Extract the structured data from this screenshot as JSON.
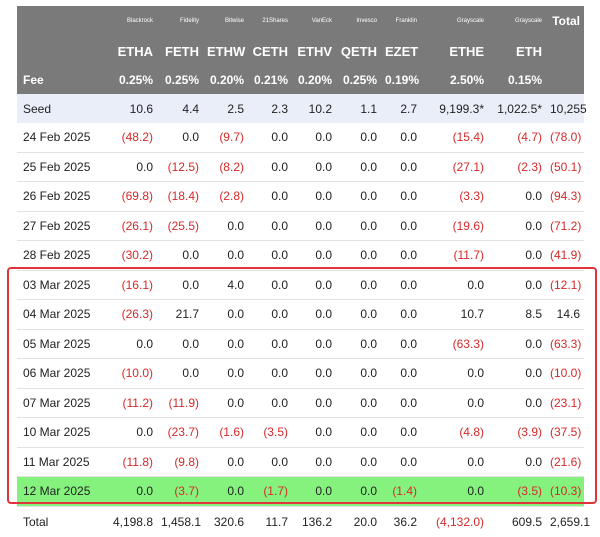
{
  "table": {
    "issuers": [
      "",
      "Blackrock",
      "Fidelity",
      "Bitwise",
      "21Shares",
      "VanEck",
      "Invesco",
      "Franklin",
      "Grayscale",
      "Grayscale",
      "Total"
    ],
    "tickers": [
      "",
      "ETHA",
      "FETH",
      "ETHW",
      "CETH",
      "ETHV",
      "QETH",
      "EZET",
      "ETHE",
      "ETH",
      ""
    ],
    "fees": [
      "Fee",
      "0.25%",
      "0.25%",
      "0.20%",
      "0.21%",
      "0.20%",
      "0.25%",
      "0.19%",
      "2.50%",
      "0.15%",
      ""
    ],
    "rows": [
      {
        "cells": [
          "Seed",
          "10.6",
          "4.4",
          "2.5",
          "2.3",
          "10.2",
          "1.1",
          "2.7",
          "9,199.3*",
          "1,022.5*",
          "10,255"
        ],
        "style": "seed"
      },
      {
        "cells": [
          "24 Feb 2025",
          "(48.2)",
          "0.0",
          "(9.7)",
          "0.0",
          "0.0",
          "0.0",
          "0.0",
          "(15.4)",
          "(4.7)",
          "(78.0)"
        ],
        "style": "data"
      },
      {
        "cells": [
          "25 Feb 2025",
          "0.0",
          "(12.5)",
          "(8.2)",
          "0.0",
          "0.0",
          "0.0",
          "0.0",
          "(27.1)",
          "(2.3)",
          "(50.1)"
        ],
        "style": "data"
      },
      {
        "cells": [
          "26 Feb 2025",
          "(69.8)",
          "(18.4)",
          "(2.8)",
          "0.0",
          "0.0",
          "0.0",
          "0.0",
          "(3.3)",
          "0.0",
          "(94.3)"
        ],
        "style": "data"
      },
      {
        "cells": [
          "27 Feb 2025",
          "(26.1)",
          "(25.5)",
          "0.0",
          "0.0",
          "0.0",
          "0.0",
          "0.0",
          "(19.6)",
          "0.0",
          "(71.2)"
        ],
        "style": "data"
      },
      {
        "cells": [
          "28 Feb 2025",
          "(30.2)",
          "0.0",
          "0.0",
          "0.0",
          "0.0",
          "0.0",
          "0.0",
          "(11.7)",
          "0.0",
          "(41.9)"
        ],
        "style": "data"
      },
      {
        "cells": [
          "03 Mar 2025",
          "(16.1)",
          "0.0",
          "4.0",
          "0.0",
          "0.0",
          "0.0",
          "0.0",
          "0.0",
          "0.0",
          "(12.1)"
        ],
        "style": "data"
      },
      {
        "cells": [
          "04 Mar 2025",
          "(26.3)",
          "21.7",
          "0.0",
          "0.0",
          "0.0",
          "0.0",
          "0.0",
          "10.7",
          "8.5",
          "14.6"
        ],
        "style": "data"
      },
      {
        "cells": [
          "05 Mar 2025",
          "0.0",
          "0.0",
          "0.0",
          "0.0",
          "0.0",
          "0.0",
          "0.0",
          "(63.3)",
          "0.0",
          "(63.3)"
        ],
        "style": "data"
      },
      {
        "cells": [
          "06 Mar 2025",
          "(10.0)",
          "0.0",
          "0.0",
          "0.0",
          "0.0",
          "0.0",
          "0.0",
          "0.0",
          "0.0",
          "(10.0)"
        ],
        "style": "data"
      },
      {
        "cells": [
          "07 Mar 2025",
          "(11.2)",
          "(11.9)",
          "0.0",
          "0.0",
          "0.0",
          "0.0",
          "0.0",
          "0.0",
          "0.0",
          "(23.1)"
        ],
        "style": "data"
      },
      {
        "cells": [
          "10 Mar 2025",
          "0.0",
          "(23.7)",
          "(1.6)",
          "(3.5)",
          "0.0",
          "0.0",
          "0.0",
          "(4.8)",
          "(3.9)",
          "(37.5)"
        ],
        "style": "data"
      },
      {
        "cells": [
          "11 Mar 2025",
          "(11.8)",
          "(9.8)",
          "0.0",
          "0.0",
          "0.0",
          "0.0",
          "0.0",
          "0.0",
          "0.0",
          "(21.6)"
        ],
        "style": "data"
      },
      {
        "cells": [
          "12 Mar 2025",
          "0.0",
          "(3.7)",
          "0.0",
          "(1.7)",
          "0.0",
          "0.0",
          "(1.4)",
          "0.0",
          "(3.5)",
          "(10.3)"
        ],
        "style": "green"
      }
    ],
    "total_row": [
      "Total",
      "4,198.8",
      "1,458.1",
      "320.6",
      "11.7",
      "136.2",
      "20.0",
      "36.2",
      "(4,132.0)",
      "609.5",
      "2,659.1"
    ]
  },
  "colors": {
    "header_bg": "#7a7a7a",
    "negative": "#d42a2a",
    "highlight_border": "#e0343c",
    "highlight_row": "#86f27e",
    "seed_bg": "#e9eef8"
  }
}
